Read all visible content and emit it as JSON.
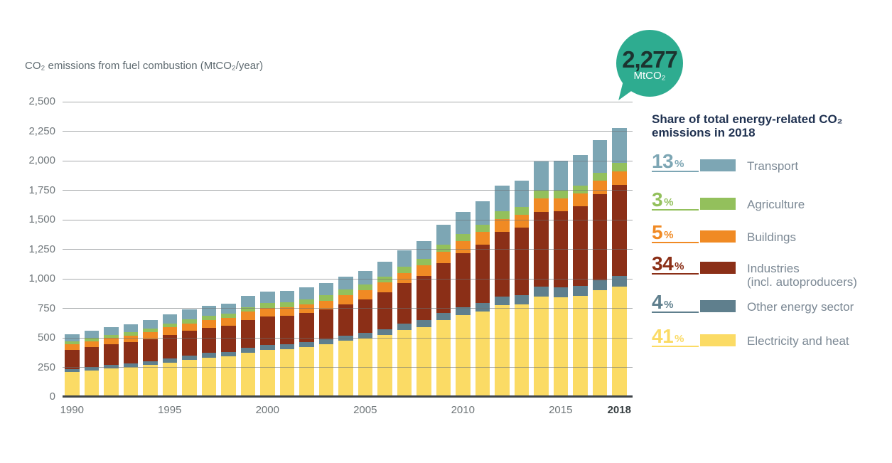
{
  "title": "CO₂ emissions from fuel combustion (MtCO₂/year)",
  "bubble": {
    "value": "2,277",
    "unit": "MtCO₂",
    "color": "#2EAC90",
    "text_color": "#1C332F"
  },
  "legend": {
    "heading": "Share of total energy-related CO₂ emissions in 2018",
    "percent_sign": "%",
    "items": [
      {
        "percent": "13",
        "label": "Transport",
        "label2": "",
        "color": "#7DA6B4"
      },
      {
        "percent": "3",
        "label": "Agriculture",
        "label2": "",
        "color": "#93C05C"
      },
      {
        "percent": "5",
        "label": "Buildings",
        "label2": "",
        "color": "#F08A24"
      },
      {
        "percent": "34",
        "label": "Industries",
        "label2": "(incl. autoproducers)",
        "color": "#8B2F17"
      },
      {
        "percent": "4",
        "label": "Other energy sector",
        "label2": "",
        "color": "#5F7F8D"
      },
      {
        "percent": "41",
        "label": "Electricity and heat",
        "label2": "",
        "color": "#FBDB65"
      }
    ]
  },
  "chart_data": {
    "type": "bar",
    "stacked": true,
    "title": "CO₂ emissions from fuel combustion (MtCO₂/year)",
    "ylabel": "MtCO₂/year",
    "ylim": [
      0,
      2500
    ],
    "ytick_step": 250,
    "ytick_labels": [
      "2,500",
      "2,250",
      "2,000",
      "1,750",
      "1,500",
      "1,250",
      "1,000",
      "750",
      "500",
      "250",
      "0"
    ],
    "grid": "horizontal gridlines drawn over bars",
    "legend_position": "right",
    "categories": [
      1990,
      1991,
      1992,
      1993,
      1994,
      1995,
      1996,
      1997,
      1998,
      1999,
      2000,
      2001,
      2002,
      2003,
      2004,
      2005,
      2006,
      2007,
      2008,
      2009,
      2010,
      2011,
      2012,
      2013,
      2014,
      2015,
      2016,
      2017,
      2018
    ],
    "xticks": [
      1990,
      1995,
      2000,
      2005,
      2010,
      2015,
      2018
    ],
    "xtick_bold": 2018,
    "series": [
      {
        "name": "Electricity and heat",
        "color": "#FBDB65",
        "values": [
          209,
          224,
          239,
          252,
          269,
          292,
          314,
          332,
          343,
          375,
          397,
          405,
          423,
          444,
          475,
          493,
          523,
          564,
          593,
          650,
          692,
          725,
          776,
          786,
          849,
          844,
          857,
          901,
          933
        ]
      },
      {
        "name": "Other energy sector",
        "color": "#5F7F8D",
        "values": [
          29,
          30,
          32,
          32,
          34,
          36,
          37,
          39,
          39,
          41,
          43,
          42,
          43,
          44,
          46,
          48,
          51,
          55,
          58,
          63,
          67,
          70,
          75,
          76,
          83,
          82,
          83,
          88,
          91
        ]
      },
      {
        "name": "Industries (incl. autoproducers)",
        "color": "#8B2F17",
        "values": [
          159,
          166,
          173,
          179,
          187,
          198,
          208,
          215,
          218,
          233,
          240,
          240,
          245,
          252,
          263,
          282,
          309,
          343,
          371,
          419,
          459,
          495,
          546,
          569,
          632,
          645,
          673,
          727,
          774
        ]
      },
      {
        "name": "Buildings",
        "color": "#F08A24",
        "values": [
          50,
          52,
          55,
          56,
          58,
          62,
          65,
          67,
          67,
          72,
          74,
          73,
          75,
          76,
          80,
          81,
          85,
          90,
          92,
          99,
          103,
          106,
          111,
          110,
          116,
          112,
          111,
          113,
          114
        ]
      },
      {
        "name": "Agriculture",
        "color": "#93C05C",
        "values": [
          25,
          27,
          28,
          29,
          31,
          33,
          35,
          36,
          37,
          39,
          41,
          41,
          42,
          44,
          46,
          47,
          49,
          52,
          54,
          58,
          60,
          62,
          65,
          65,
          68,
          66,
          66,
          68,
          68
        ]
      },
      {
        "name": "Transport",
        "color": "#7DA6B4",
        "values": [
          57,
          60,
          63,
          66,
          70,
          75,
          80,
          83,
          85,
          92,
          97,
          98,
          101,
          105,
          111,
          118,
          128,
          141,
          152,
          170,
          185,
          198,
          217,
          224,
          247,
          251,
          260,
          280,
          296
        ]
      }
    ],
    "totals": [
      529,
      559,
      590,
      614,
      649,
      696,
      739,
      772,
      789,
      852,
      892,
      899,
      929,
      965,
      1021,
      1069,
      1145,
      1246,
      1320,
      1459,
      1566,
      1656,
      1790,
      1830,
      1995,
      2000,
      2050,
      2177,
      2276
    ],
    "annotation_2018_total": "2,277 MtCO₂"
  }
}
